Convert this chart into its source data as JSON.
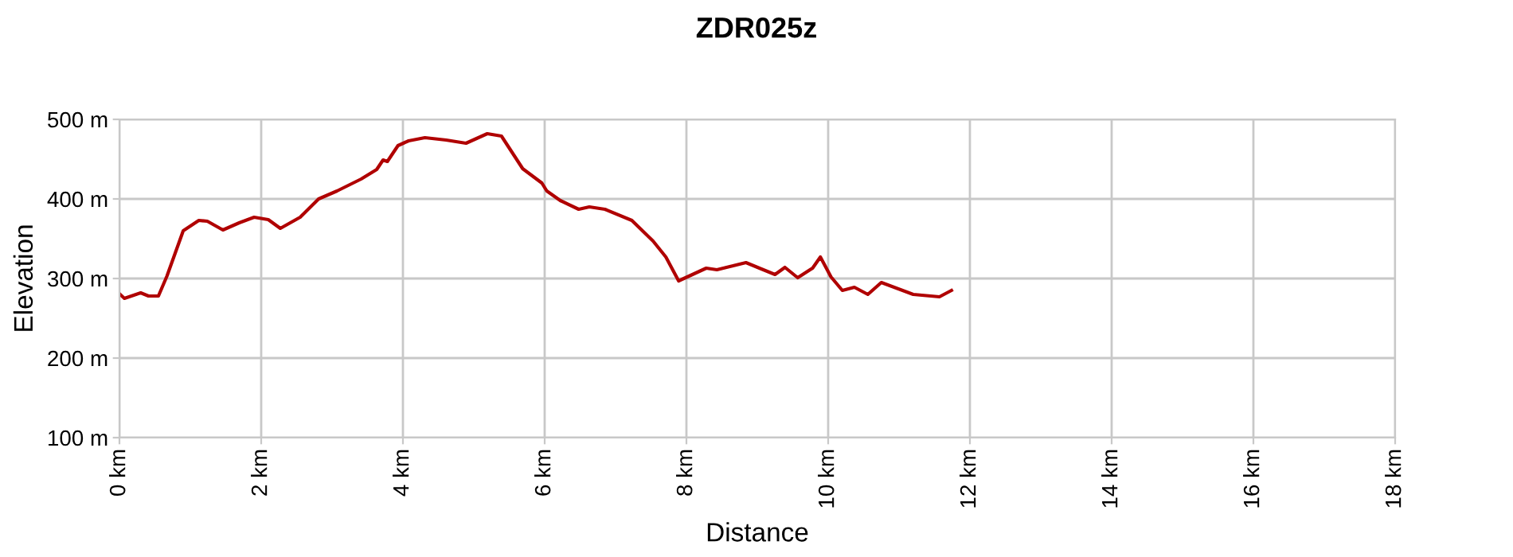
{
  "chart_data": {
    "type": "line",
    "title": "ZDR025z",
    "xlabel": "Distance",
    "ylabel": "Elevation",
    "xlim": [
      0,
      18
    ],
    "ylim": [
      100,
      500
    ],
    "xticks": [
      {
        "value": 0,
        "label": "0 km"
      },
      {
        "value": 2,
        "label": "2 km"
      },
      {
        "value": 4,
        "label": "4 km"
      },
      {
        "value": 6,
        "label": "6 km"
      },
      {
        "value": 8,
        "label": "8 km"
      },
      {
        "value": 10,
        "label": "10 km"
      },
      {
        "value": 12,
        "label": "12 km"
      },
      {
        "value": 14,
        "label": "14 km"
      },
      {
        "value": 16,
        "label": "16 km"
      },
      {
        "value": 18,
        "label": "18 km"
      }
    ],
    "yticks": [
      {
        "value": 100,
        "label": "100 m"
      },
      {
        "value": 200,
        "label": "200 m"
      },
      {
        "value": 300,
        "label": "300 m"
      },
      {
        "value": 400,
        "label": "400 m"
      },
      {
        "value": 500,
        "label": "500 m"
      }
    ],
    "grid": true,
    "marker": "none",
    "line_style": "solid",
    "series": [
      {
        "color": "#b00000",
        "x": [
          0.01,
          0.07,
          0.3,
          0.41,
          0.55,
          0.67,
          0.9,
          1.12,
          1.24,
          1.46,
          1.69,
          1.9,
          2.1,
          2.27,
          2.55,
          2.81,
          3.07,
          3.41,
          3.63,
          3.72,
          3.78,
          3.93,
          4.08,
          4.31,
          4.61,
          4.89,
          5.19,
          5.39,
          5.69,
          5.96,
          6.03,
          6.22,
          6.48,
          6.63,
          6.85,
          7.23,
          7.53,
          7.71,
          7.89,
          8.28,
          8.43,
          8.84,
          9.03,
          9.25,
          9.39,
          9.57,
          9.78,
          9.89,
          10.04,
          10.2,
          10.37,
          10.56,
          10.75,
          10.9,
          11.2,
          11.57,
          11.74
        ],
        "values": [
          280,
          275,
          282,
          278,
          278,
          303,
          360,
          373,
          372,
          361,
          370,
          377,
          374,
          363,
          377,
          400,
          410,
          425,
          437,
          449,
          447,
          467,
          473,
          477,
          474,
          470,
          482,
          479,
          438,
          420,
          410,
          398,
          387,
          390,
          387,
          373,
          347,
          327,
          297,
          313,
          311,
          320,
          313,
          305,
          314,
          301,
          313,
          327,
          302,
          285,
          289,
          280,
          295,
          290,
          280,
          277,
          285
        ]
      }
    ]
  }
}
